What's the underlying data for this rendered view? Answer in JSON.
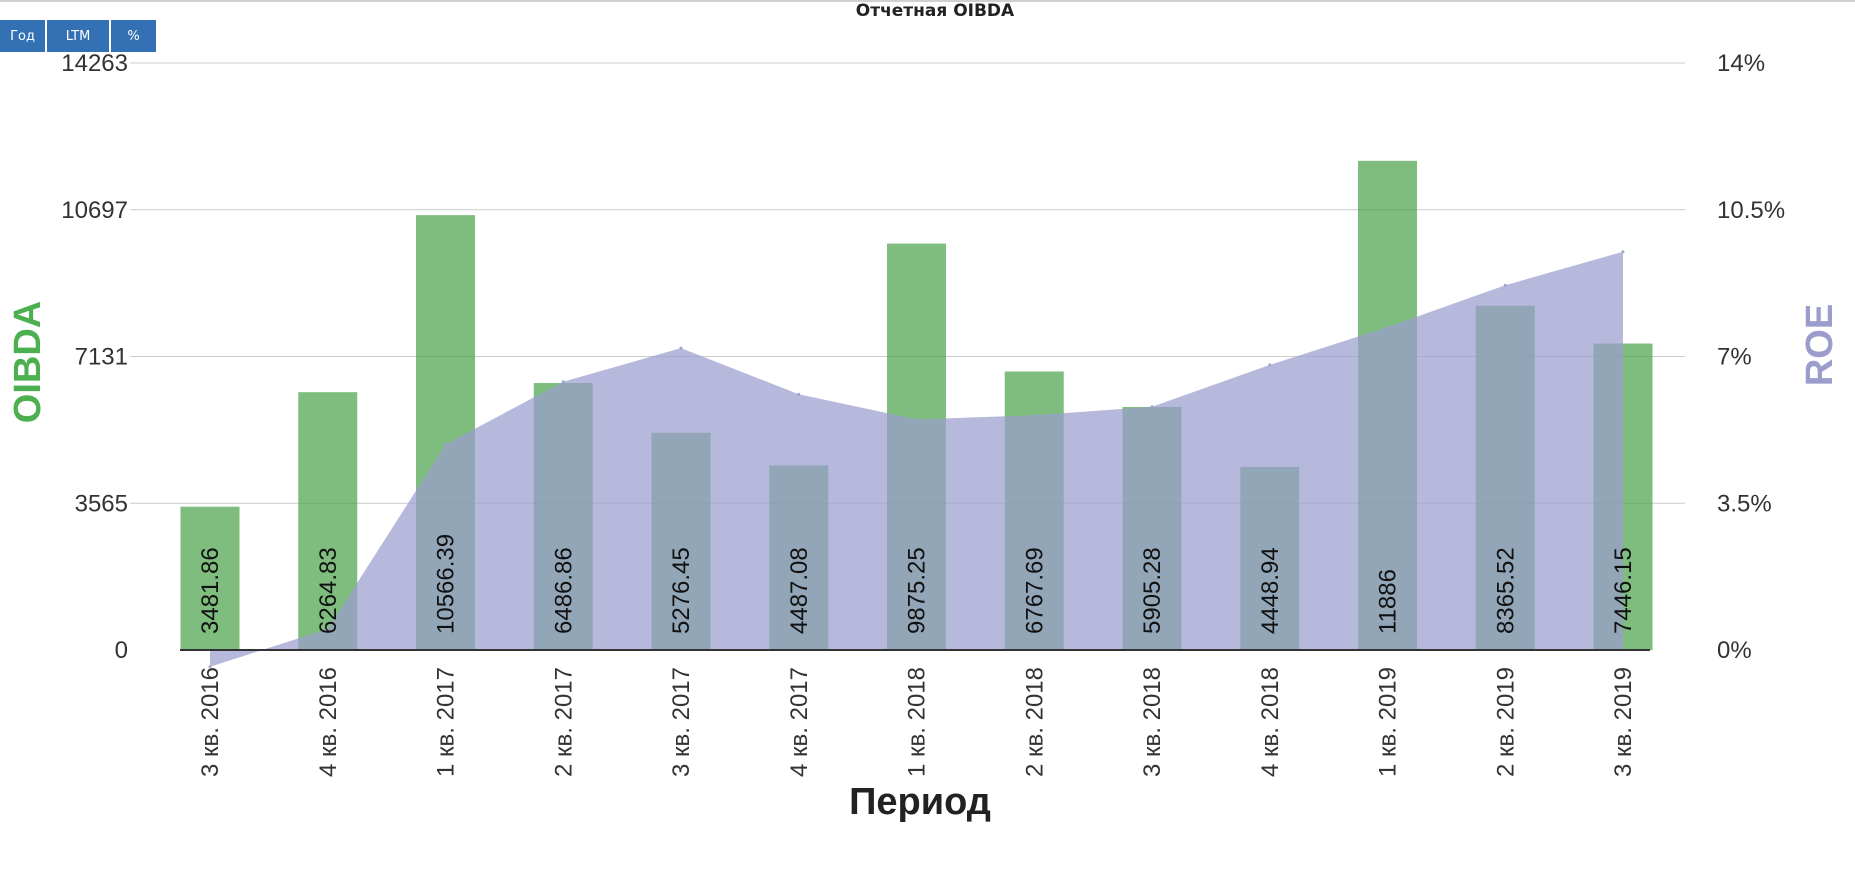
{
  "controls": {
    "tabs": [
      "Год",
      "LTM",
      "%"
    ]
  },
  "colors": {
    "bar": "#4ca34c",
    "area": "#9a9ccf",
    "left_axis_title": "#4caf50",
    "right_axis_title": "#9b9dcc",
    "tab_bg": "#3371b4"
  },
  "chart_data": {
    "type": "bar",
    "title": "Отчетная OIBDA",
    "xlabel": "Период",
    "ylabel": "OIBDA",
    "y2label": "ROE",
    "categories": [
      "3 кв. 2016",
      "4 кв. 2016",
      "1 кв. 2017",
      "2 кв. 2017",
      "3 кв. 2017",
      "4 кв. 2017",
      "1 кв. 2018",
      "2 кв. 2018",
      "3 кв. 2018",
      "4 кв. 2018",
      "1 кв. 2019",
      "2 кв. 2019",
      "3 кв. 2019"
    ],
    "series": [
      {
        "name": "OIBDA",
        "type": "bar",
        "axis": "left",
        "values": [
          3481.86,
          6264.83,
          10566.39,
          6486.86,
          5276.45,
          4487.08,
          9875.25,
          6767.69,
          5905.28,
          4448.94,
          11886,
          8365.52,
          7446.15
        ],
        "value_labels": [
          "3481.86",
          "6264.83",
          "10566.39",
          "6486.86",
          "5276.45",
          "4487.08",
          "9875.25",
          "6767.69",
          "5905.28",
          "4448.94",
          "11886",
          "8365.52",
          "7446.15"
        ]
      },
      {
        "name": "ROE",
        "type": "area",
        "axis": "right",
        "unit": "%",
        "values": [
          -0.4,
          0.5,
          4.9,
          6.4,
          7.2,
          6.1,
          5.5,
          5.6,
          5.8,
          6.8,
          7.7,
          8.7,
          9.5
        ]
      }
    ],
    "ylim": [
      0,
      14263
    ],
    "y_ticks": [
      "0",
      "3565",
      "7131",
      "10697",
      "14263"
    ],
    "y2lim": [
      0,
      14
    ],
    "y2_ticks": [
      "0%",
      "3.5%",
      "7%",
      "10.5%",
      "14%"
    ],
    "grid": true,
    "legend": "none"
  }
}
